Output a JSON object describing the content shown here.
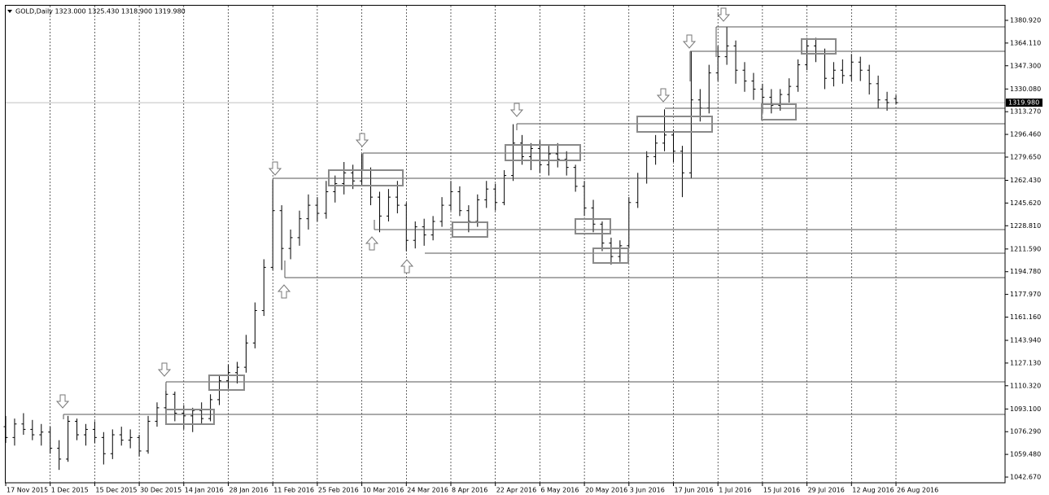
{
  "chart_data": {
    "type": "ohlc",
    "title": "GOLD,Daily  1323.000 1325.430 1318.900 1319.980",
    "x": [
      0,
      1,
      2,
      3,
      4,
      5,
      6,
      7,
      8,
      9,
      10,
      11,
      12,
      13,
      14,
      15,
      16,
      17,
      18,
      19,
      20,
      21,
      22,
      23,
      24,
      25,
      26,
      27,
      28,
      29,
      30,
      31,
      32,
      33,
      34,
      35,
      36,
      37,
      38,
      39,
      40,
      41,
      42,
      43,
      44,
      45,
      46,
      47,
      48,
      49,
      50,
      51,
      52,
      53,
      54,
      55,
      56,
      57,
      58,
      59,
      60,
      61,
      62,
      63,
      64,
      65,
      66,
      67,
      68,
      69,
      70,
      71,
      72,
      73,
      74,
      75,
      76,
      77,
      78,
      79,
      80,
      81,
      82,
      83,
      84,
      85,
      86,
      87,
      88,
      89,
      90,
      91,
      92,
      93,
      94,
      95,
      96,
      97,
      98,
      99,
      100
    ],
    "ohlc": [
      [
        1080,
        1088,
        1068,
        1072
      ],
      [
        1072,
        1086,
        1066,
        1082
      ],
      [
        1082,
        1090,
        1074,
        1078
      ],
      [
        1078,
        1085,
        1070,
        1074
      ],
      [
        1074,
        1082,
        1066,
        1076
      ],
      [
        1076,
        1080,
        1060,
        1064
      ],
      [
        1064,
        1070,
        1048,
        1056
      ],
      [
        1056,
        1088,
        1054,
        1084
      ],
      [
        1084,
        1086,
        1070,
        1074
      ],
      [
        1074,
        1082,
        1066,
        1078
      ],
      [
        1078,
        1084,
        1068,
        1072
      ],
      [
        1072,
        1076,
        1052,
        1060
      ],
      [
        1060,
        1078,
        1056,
        1074
      ],
      [
        1074,
        1080,
        1066,
        1070
      ],
      [
        1070,
        1078,
        1064,
        1072
      ],
      [
        1072,
        1074,
        1058,
        1062
      ],
      [
        1062,
        1088,
        1060,
        1084
      ],
      [
        1084,
        1098,
        1080,
        1094
      ],
      [
        1094,
        1112,
        1088,
        1104
      ],
      [
        1104,
        1106,
        1084,
        1090
      ],
      [
        1090,
        1096,
        1078,
        1088
      ],
      [
        1088,
        1094,
        1076,
        1092
      ],
      [
        1092,
        1098,
        1082,
        1086
      ],
      [
        1086,
        1104,
        1084,
        1100
      ],
      [
        1100,
        1118,
        1096,
        1114
      ],
      [
        1114,
        1126,
        1108,
        1120
      ],
      [
        1120,
        1128,
        1112,
        1124
      ],
      [
        1124,
        1148,
        1120,
        1142
      ],
      [
        1142,
        1172,
        1138,
        1166
      ],
      [
        1166,
        1204,
        1162,
        1198
      ],
      [
        1198,
        1263,
        1196,
        1240
      ],
      [
        1240,
        1244,
        1196,
        1212
      ],
      [
        1212,
        1226,
        1204,
        1220
      ],
      [
        1220,
        1240,
        1214,
        1234
      ],
      [
        1234,
        1252,
        1226,
        1244
      ],
      [
        1244,
        1250,
        1232,
        1238
      ],
      [
        1238,
        1262,
        1234,
        1254
      ],
      [
        1254,
        1266,
        1246,
        1260
      ],
      [
        1260,
        1276,
        1252,
        1268
      ],
      [
        1268,
        1274,
        1256,
        1262
      ],
      [
        1262,
        1282,
        1258,
        1270
      ],
      [
        1270,
        1272,
        1244,
        1250
      ],
      [
        1250,
        1254,
        1224,
        1236
      ],
      [
        1236,
        1256,
        1232,
        1250
      ],
      [
        1250,
        1262,
        1238,
        1244
      ],
      [
        1244,
        1246,
        1210,
        1218
      ],
      [
        1218,
        1232,
        1212,
        1228
      ],
      [
        1228,
        1234,
        1214,
        1222
      ],
      [
        1222,
        1236,
        1218,
        1232
      ],
      [
        1232,
        1250,
        1228,
        1244
      ],
      [
        1244,
        1262,
        1240,
        1254
      ],
      [
        1254,
        1258,
        1236,
        1240
      ],
      [
        1240,
        1244,
        1224,
        1232
      ],
      [
        1232,
        1252,
        1228,
        1248
      ],
      [
        1248,
        1262,
        1242,
        1256
      ],
      [
        1256,
        1260,
        1240,
        1246
      ],
      [
        1246,
        1270,
        1244,
        1266
      ],
      [
        1266,
        1304,
        1262,
        1290
      ],
      [
        1290,
        1296,
        1274,
        1280
      ],
      [
        1280,
        1290,
        1270,
        1286
      ],
      [
        1286,
        1292,
        1268,
        1274
      ],
      [
        1274,
        1288,
        1266,
        1282
      ],
      [
        1282,
        1290,
        1272,
        1278
      ],
      [
        1278,
        1284,
        1266,
        1272
      ],
      [
        1272,
        1274,
        1254,
        1258
      ],
      [
        1258,
        1262,
        1236,
        1242
      ],
      [
        1242,
        1248,
        1224,
        1230
      ],
      [
        1230,
        1232,
        1210,
        1216
      ],
      [
        1216,
        1220,
        1200,
        1206
      ],
      [
        1206,
        1218,
        1202,
        1214
      ],
      [
        1214,
        1250,
        1212,
        1246
      ],
      [
        1246,
        1268,
        1242,
        1264
      ],
      [
        1264,
        1284,
        1260,
        1280
      ],
      [
        1280,
        1296,
        1274,
        1290
      ],
      [
        1290,
        1315,
        1284,
        1296
      ],
      [
        1296,
        1300,
        1276,
        1284
      ],
      [
        1284,
        1288,
        1250,
        1268
      ],
      [
        1268,
        1358,
        1264,
        1322
      ],
      [
        1322,
        1330,
        1306,
        1316
      ],
      [
        1316,
        1348,
        1312,
        1342
      ],
      [
        1342,
        1362,
        1336,
        1354
      ],
      [
        1354,
        1376,
        1348,
        1362
      ],
      [
        1362,
        1366,
        1334,
        1344
      ],
      [
        1344,
        1350,
        1328,
        1336
      ],
      [
        1336,
        1342,
        1322,
        1330
      ],
      [
        1330,
        1334,
        1312,
        1324
      ],
      [
        1324,
        1330,
        1312,
        1318
      ],
      [
        1318,
        1330,
        1314,
        1326
      ],
      [
        1326,
        1338,
        1320,
        1332
      ],
      [
        1332,
        1352,
        1328,
        1348
      ],
      [
        1348,
        1368,
        1344,
        1362
      ],
      [
        1362,
        1368,
        1350,
        1356
      ],
      [
        1356,
        1360,
        1330,
        1338
      ],
      [
        1338,
        1350,
        1332,
        1344
      ],
      [
        1344,
        1352,
        1334,
        1340
      ],
      [
        1340,
        1356,
        1336,
        1350
      ],
      [
        1350,
        1354,
        1336,
        1344
      ],
      [
        1344,
        1348,
        1326,
        1334
      ],
      [
        1334,
        1340,
        1316,
        1322
      ],
      [
        1322,
        1328,
        1314,
        1320
      ],
      [
        1323,
        1325.43,
        1318.9,
        1319.98
      ]
    ],
    "color": "#000000",
    "xlim": [
      0,
      112.25
    ],
    "xticks": [
      {
        "value": 0,
        "label": "17 Nov 2015"
      },
      {
        "value": 5,
        "label": "1 Dec 2015"
      },
      {
        "value": 10,
        "label": "15 Dec 2015"
      },
      {
        "value": 15,
        "label": "30 Dec 2015"
      },
      {
        "value": 20,
        "label": "14 Jan 2016"
      },
      {
        "value": 25,
        "label": "28 Jan 2016"
      },
      {
        "value": 30,
        "label": "11 Feb 2016"
      },
      {
        "value": 35,
        "label": "25 Feb 2016"
      },
      {
        "value": 40,
        "label": "10 Mar 2016"
      },
      {
        "value": 45,
        "label": "24 Mar 2016"
      },
      {
        "value": 50,
        "label": "8 Apr 2016"
      },
      {
        "value": 55,
        "label": "22 Apr 2016"
      },
      {
        "value": 60,
        "label": "6 May 2016"
      },
      {
        "value": 65,
        "label": "20 May 2016"
      },
      {
        "value": 70,
        "label": "3 Jun 2016"
      },
      {
        "value": 75,
        "label": "17 Jun 2016"
      },
      {
        "value": 80,
        "label": "1 Jul 2016"
      },
      {
        "value": 85,
        "label": "15 Jul 2016"
      },
      {
        "value": 90,
        "label": "29 Jul 2016"
      },
      {
        "value": 95,
        "label": "12 Aug 2016"
      },
      {
        "value": 100,
        "label": "26 Aug 2016"
      }
    ],
    "ylim": [
      1038.45,
      1391.77
    ],
    "yticks": [
      {
        "value": 1380.92,
        "label": "1380.920"
      },
      {
        "value": 1364.11,
        "label": "1364.110"
      },
      {
        "value": 1347.3,
        "label": "1347.300"
      },
      {
        "value": 1330.08,
        "label": "1330.080"
      },
      {
        "value": 1313.27,
        "label": "1313.270"
      },
      {
        "value": 1296.46,
        "label": "1296.460"
      },
      {
        "value": 1279.65,
        "label": "1279.650"
      },
      {
        "value": 1262.43,
        "label": "1262.430"
      },
      {
        "value": 1245.62,
        "label": "1245.620"
      },
      {
        "value": 1228.81,
        "label": "1228.810"
      },
      {
        "value": 1211.59,
        "label": "1211.590"
      },
      {
        "value": 1194.78,
        "label": "1194.780"
      },
      {
        "value": 1177.97,
        "label": "1177.970"
      },
      {
        "value": 1161.16,
        "label": "1161.160"
      },
      {
        "value": 1143.94,
        "label": "1143.940"
      },
      {
        "value": 1127.13,
        "label": "1127.130"
      },
      {
        "value": 1110.32,
        "label": "1110.320"
      },
      {
        "value": 1093.1,
        "label": "1093.100"
      },
      {
        "value": 1076.29,
        "label": "1076.290"
      },
      {
        "value": 1059.48,
        "label": "1059.480"
      },
      {
        "value": 1042.67,
        "label": "1042.670"
      }
    ],
    "current_price": {
      "value": 1319.98,
      "label": "1319.980"
    },
    "grid": true
  }
}
